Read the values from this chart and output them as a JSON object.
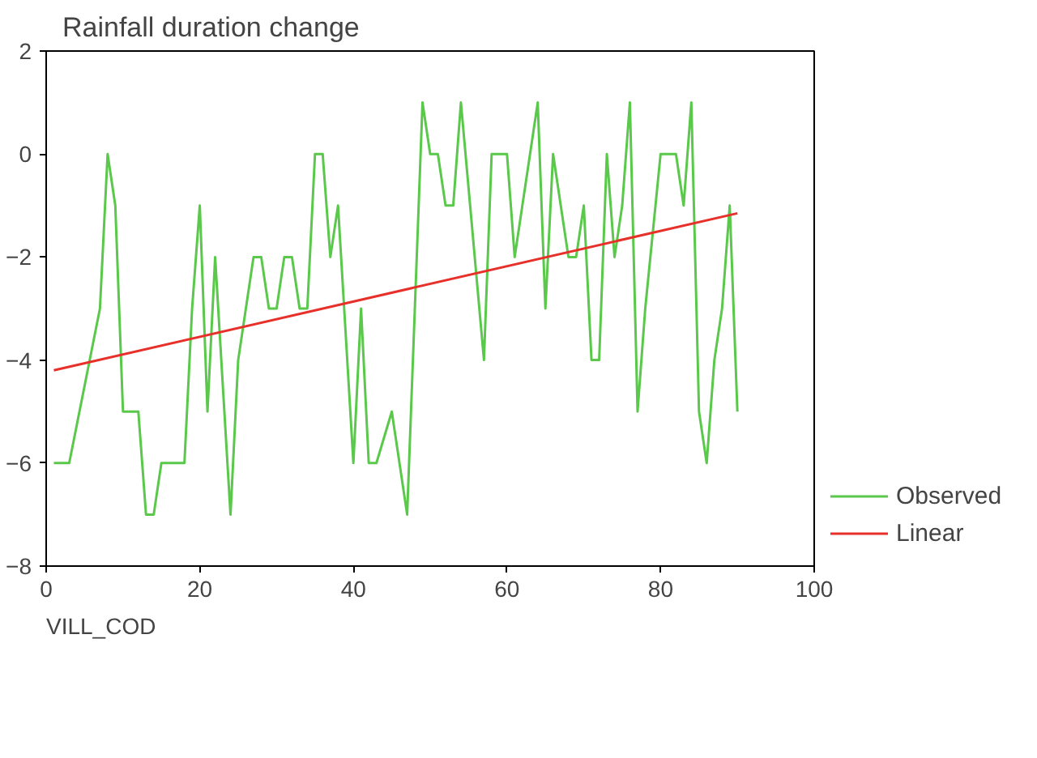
{
  "chart_data": {
    "type": "line",
    "title": "Rainfall duration change",
    "xlabel": "VILL_COD",
    "xlim": [
      0,
      100
    ],
    "xticks": [
      0,
      20,
      40,
      60,
      80,
      100
    ],
    "ylim": [
      -8,
      2
    ],
    "yticks": [
      -8,
      -6,
      -4,
      -2,
      0,
      2
    ],
    "grid": false,
    "legend": "bottom right",
    "series": [
      {
        "name": "Observed",
        "color": "#5ac84a",
        "x": [
          1,
          3,
          7,
          8,
          9,
          10,
          12,
          13,
          14,
          15,
          18,
          19,
          20,
          21,
          22,
          24,
          25,
          26,
          27,
          28,
          29,
          30,
          31,
          32,
          33,
          34,
          35,
          36,
          37,
          38,
          40,
          41,
          42,
          43,
          45,
          47,
          49,
          50,
          51,
          52,
          53,
          54,
          57,
          58,
          60,
          61,
          63,
          64,
          65,
          66,
          68,
          69,
          70,
          71,
          72,
          73,
          74,
          75,
          76,
          77,
          78,
          80,
          82,
          83,
          84,
          85,
          86,
          87,
          88,
          89,
          90
        ],
        "values": [
          -6,
          -6,
          -3,
          0,
          -1,
          -5,
          -5,
          -7,
          -7,
          -6,
          -6,
          -3,
          -1,
          -5,
          -2,
          -7,
          -4,
          -3,
          -2,
          -2,
          -3,
          -3,
          -2,
          -2,
          -3,
          -3,
          0,
          0,
          -2,
          -1,
          -6,
          -3,
          -6,
          -6,
          -5,
          -7,
          1,
          0,
          0,
          -1,
          -1,
          1,
          -4,
          0,
          0,
          -2,
          0,
          1,
          -3,
          0,
          -2,
          -2,
          -1,
          -4,
          -4,
          0,
          -2,
          -1,
          1,
          -5,
          -3,
          0,
          0,
          -1,
          1,
          -5,
          -6,
          -4,
          -3,
          -1,
          -5
        ]
      },
      {
        "name": "Linear",
        "color": "#e8302a",
        "x": [
          1,
          90
        ],
        "values": [
          -4.2,
          -1.15
        ]
      }
    ]
  }
}
